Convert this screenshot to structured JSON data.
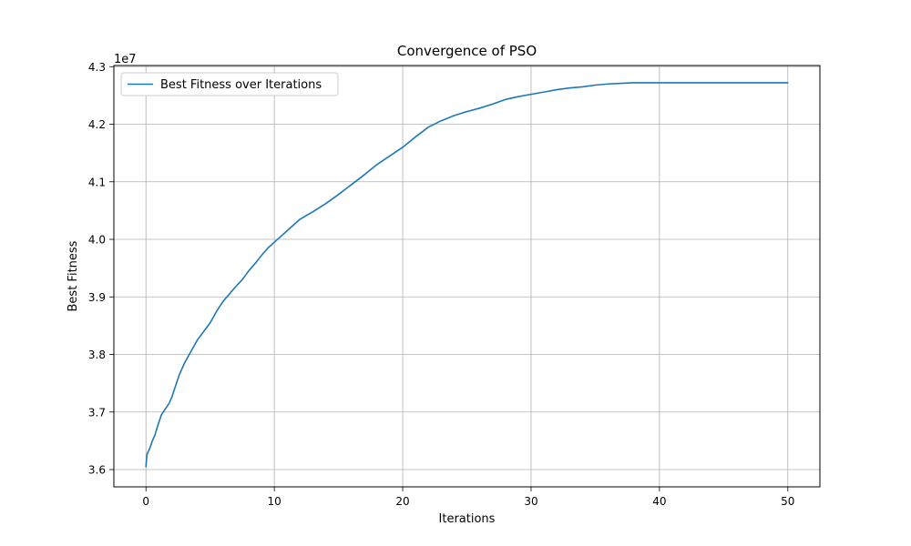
{
  "chart_data": {
    "type": "line",
    "title": "Convergence of PSO",
    "xlabel": "Iterations",
    "ylabel": "Best Fitness",
    "y_offset_label": "1e7",
    "xlim": [
      -2.5,
      52.5
    ],
    "ylim": [
      35.7,
      43.02
    ],
    "y_unit_scale": 10000000,
    "grid": true,
    "legend_position": "top-left",
    "x_ticks": [
      0,
      10,
      20,
      30,
      40,
      50
    ],
    "x_tick_labels": [
      "0",
      "10",
      "20",
      "30",
      "40",
      "50"
    ],
    "y_ticks": [
      36,
      37,
      38,
      39,
      40,
      41,
      42,
      43
    ],
    "y_tick_labels": [
      "3.6",
      "3.7",
      "3.8",
      "3.9",
      "4.0",
      "4.1",
      "4.2",
      "4.3"
    ],
    "series": [
      {
        "name": "Best Fitness over Iterations",
        "color": "#1f77b4",
        "x": [
          0,
          0.05,
          0.1,
          0.2,
          0.35,
          0.5,
          0.7,
          0.9,
          1.2,
          1.5,
          1.8,
          2.0,
          2.3,
          2.6,
          3.0,
          3.5,
          4.0,
          4.5,
          5.0,
          5.5,
          6.0,
          6.5,
          7.0,
          7.5,
          8.0,
          8.5,
          9.0,
          9.5,
          10.0,
          11.0,
          12.0,
          13.0,
          14.0,
          15.0,
          16.0,
          17.0,
          18.0,
          19.0,
          20.0,
          21.0,
          22.0,
          23.0,
          24.0,
          25.0,
          26.0,
          27.0,
          28.0,
          29.0,
          30.0,
          31.0,
          32.0,
          33.0,
          34.0,
          35.0,
          36.0,
          37.0,
          38.0,
          39.0,
          40.0,
          45.0,
          50.0
        ],
        "y": [
          36.05,
          36.2,
          36.28,
          36.32,
          36.4,
          36.5,
          36.6,
          36.75,
          36.95,
          37.05,
          37.15,
          37.25,
          37.45,
          37.65,
          37.85,
          38.05,
          38.25,
          38.4,
          38.55,
          38.75,
          38.92,
          39.05,
          39.18,
          39.3,
          39.45,
          39.58,
          39.72,
          39.85,
          39.95,
          40.15,
          40.35,
          40.48,
          40.62,
          40.78,
          40.95,
          41.12,
          41.3,
          41.45,
          41.6,
          41.78,
          41.95,
          42.06,
          42.15,
          42.22,
          42.28,
          42.35,
          42.43,
          42.48,
          42.52,
          42.56,
          42.6,
          42.63,
          42.65,
          42.68,
          42.7,
          42.71,
          42.72,
          42.72,
          42.72,
          42.72,
          42.72
        ]
      }
    ]
  }
}
